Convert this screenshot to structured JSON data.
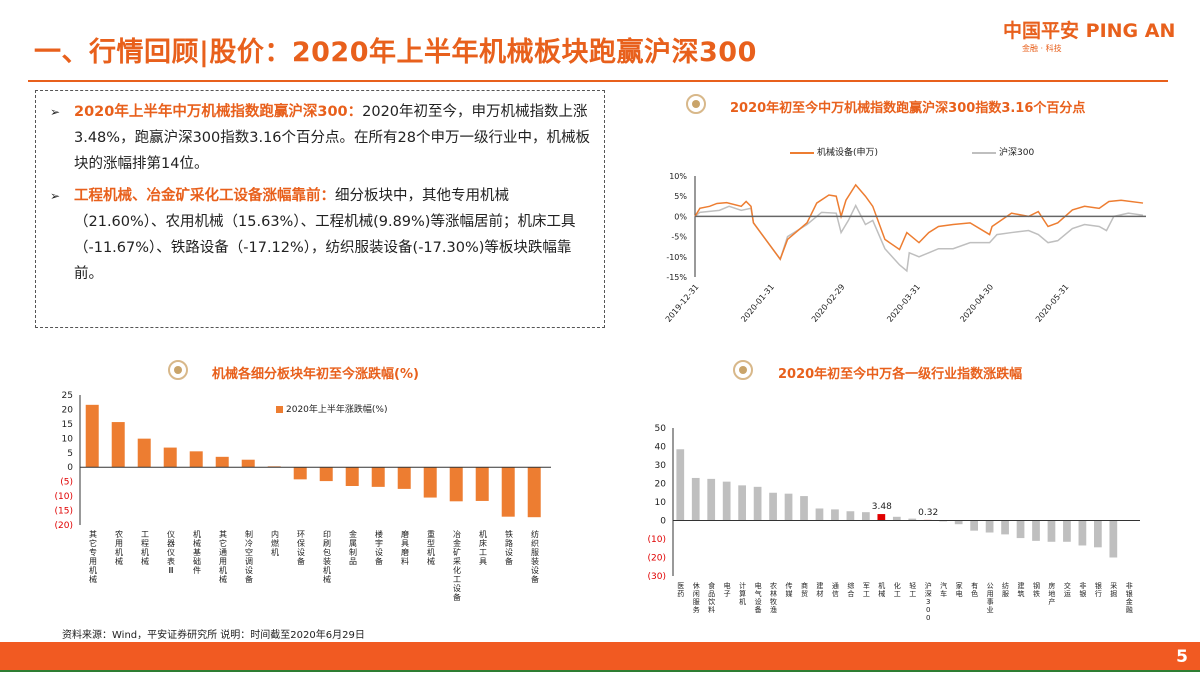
{
  "header": {
    "title": "一、行情回顾|股价：2020年上半年机械板块跑赢沪深300",
    "logo_cn": "中国平安",
    "logo_en": "PING AN",
    "logo_sub": "金融 · 科技"
  },
  "summary": [
    {
      "bullet": "➢",
      "highlight": "2020年上半年中万机械指数跑赢沪深300：",
      "text": "2020年初至今，申万机械指数上涨3.48%，跑赢沪深300指数3.16个百分点。在所有28个申万一级行业中，机械板块的涨幅排第14位。"
    },
    {
      "bullet": "➢",
      "highlight": "工程机械、冶金矿采化工设备涨幅靠前：",
      "text": "细分板块中，其他专用机械（21.60%）、农用机械（15.63%）、工程机械(9.89%)等涨幅居前；机床工具（-11.67%）、铁路设备（-17.12%），纺织服装设备(-17.30%)等板块跌幅靠前。"
    }
  ],
  "colors": {
    "accent": "#e8601c",
    "bar_orange": "#ed7d31",
    "gray": "#bfbfbf",
    "highlight_red": "#e00000",
    "negative_label": "#e00000"
  },
  "chart_data": [
    {
      "type": "line",
      "title": "2020年初至今中万机械指数跑赢沪深300指数3.16个百分点",
      "ylim": [
        -15,
        10
      ],
      "yticks": [
        "10%",
        "5%",
        "0%",
        "-5%",
        "-10%",
        "-15%"
      ],
      "ytick_values": [
        10,
        5,
        0,
        -5,
        -10,
        -15
      ],
      "xticks": [
        "2019-12-31",
        "2020-01-31",
        "2020-02-29",
        "2020-03-31",
        "2020-04-30",
        "2020-05-31"
      ],
      "xtick_days": [
        0,
        31,
        60,
        91,
        121,
        152
      ],
      "xlim_days": [
        0,
        184
      ],
      "legend_position": "top",
      "series": [
        {
          "name": "机械设备(申万)",
          "color": "#ed7d31",
          "points": [
            [
              0,
              0
            ],
            [
              2,
              2
            ],
            [
              6,
              2.5
            ],
            [
              9,
              3.2
            ],
            [
              13,
              3.4
            ],
            [
              19,
              2.5
            ],
            [
              21,
              3.7
            ],
            [
              23,
              2.5
            ],
            [
              24,
              -1.6
            ],
            [
              35,
              -10.6
            ],
            [
              38,
              -5.7
            ],
            [
              46,
              -1.6
            ],
            [
              50,
              3.3
            ],
            [
              55,
              5.3
            ],
            [
              58,
              5
            ],
            [
              60,
              0
            ],
            [
              62,
              4
            ],
            [
              66,
              7.8
            ],
            [
              70,
              5
            ],
            [
              73,
              2.5
            ],
            [
              78,
              -5.7
            ],
            [
              84,
              -8.2
            ],
            [
              87,
              -4
            ],
            [
              92,
              -6.5
            ],
            [
              96,
              -4
            ],
            [
              100,
              -2.5
            ],
            [
              106,
              -2
            ],
            [
              113,
              -1.6
            ],
            [
              121,
              -4.5
            ],
            [
              122,
              -2.5
            ],
            [
              130,
              0.8
            ],
            [
              137,
              0
            ],
            [
              141,
              1.2
            ],
            [
              145,
              -2.5
            ],
            [
              149,
              -1.6
            ],
            [
              155,
              1.6
            ],
            [
              160,
              2.5
            ],
            [
              166,
              2
            ],
            [
              170,
              3.7
            ],
            [
              175,
              4
            ],
            [
              184,
              3.3
            ]
          ]
        },
        {
          "name": "沪深300",
          "color": "#bfbfbf",
          "points": [
            [
              0,
              0
            ],
            [
              2,
              1
            ],
            [
              10,
              1.5
            ],
            [
              14,
              2.5
            ],
            [
              19,
              1.5
            ],
            [
              23,
              2
            ],
            [
              24,
              -1.6
            ],
            [
              35,
              -10.6
            ],
            [
              38,
              -5
            ],
            [
              46,
              -2
            ],
            [
              50,
              0
            ],
            [
              52,
              1
            ],
            [
              58,
              0.8
            ],
            [
              60,
              -4
            ],
            [
              63,
              -1
            ],
            [
              66,
              2.7
            ],
            [
              70,
              -2
            ],
            [
              73,
              -1
            ],
            [
              78,
              -8
            ],
            [
              84,
              -12
            ],
            [
              87,
              -13.5
            ],
            [
              88,
              -9
            ],
            [
              92,
              -10
            ],
            [
              96,
              -9
            ],
            [
              100,
              -8
            ],
            [
              106,
              -8
            ],
            [
              113,
              -6.5
            ],
            [
              121,
              -6.5
            ],
            [
              124,
              -4.5
            ],
            [
              130,
              -4
            ],
            [
              137,
              -3.5
            ],
            [
              141,
              -4.5
            ],
            [
              145,
              -6.5
            ],
            [
              149,
              -6
            ],
            [
              155,
              -3
            ],
            [
              160,
              -2
            ],
            [
              166,
              -2.5
            ],
            [
              169,
              -3.5
            ],
            [
              172,
              0
            ],
            [
              178,
              0.8
            ],
            [
              184,
              0.3
            ]
          ]
        }
      ]
    },
    {
      "type": "bar",
      "title": "机械各细分板块年初至今涨跌幅(%)",
      "legend": "2020年上半年涨跌幅(%)",
      "legend_position": "top-center",
      "ylim": [
        -20,
        25
      ],
      "yticks": [
        "25",
        "20",
        "15",
        "10",
        "5",
        "0",
        "(5)",
        "(10)",
        "(15)",
        "(20)"
      ],
      "ytick_values": [
        25,
        20,
        15,
        10,
        5,
        0,
        -5,
        -10,
        -15,
        -20
      ],
      "categories": [
        "其它专用机械",
        "农用机械",
        "工程机械",
        "仪器仪表Ⅲ",
        "机械基础件",
        "其它通用机械",
        "制冷空调设备",
        "内燃机",
        "环保设备",
        "印刷包装机械",
        "金属制品",
        "楼宇设备",
        "磨具磨料",
        "重型机械",
        "冶金矿采化工设备",
        "机床工具",
        "铁路设备",
        "纺织服装设备"
      ],
      "values": [
        21.6,
        15.63,
        9.89,
        6.8,
        5.5,
        3.6,
        2.6,
        0.3,
        -4.2,
        -4.8,
        -6.5,
        -6.8,
        -7.5,
        -10.5,
        -11.8,
        -11.67,
        -17.12,
        -17.3
      ]
    },
    {
      "type": "bar",
      "title": "2020年初至今中万各一级行业指数涨跌幅",
      "ylim": [
        -30,
        50
      ],
      "yticks": [
        "50",
        "40",
        "30",
        "20",
        "10",
        "0",
        "(10)",
        "(20)",
        "(30)"
      ],
      "ytick_values": [
        50,
        40,
        30,
        20,
        10,
        0,
        -10,
        -20,
        -30
      ],
      "categories": [
        "医药",
        "休闲服务",
        "食品饮料",
        "电子",
        "计算机",
        "电气设备",
        "农林牧渔",
        "传媒",
        "商贸",
        "建材",
        "通信",
        "综合",
        "军工",
        "机械",
        "化工",
        "轻工",
        "沪深300",
        "汽车",
        "家电",
        "有色",
        "公用事业",
        "纺服",
        "建筑",
        "钢铁",
        "房地产",
        "交运",
        "非银",
        "银行",
        "采掘",
        "非银金融"
      ],
      "values": [
        38.5,
        23,
        22.5,
        21,
        19,
        18.2,
        15,
        14.5,
        13.2,
        6.5,
        6,
        5,
        4.5,
        3.48,
        2,
        1,
        0.32,
        -0.5,
        -2,
        -5.5,
        -6.5,
        -7.5,
        -9.5,
        -11,
        -11.5,
        -11.5,
        -13.5,
        -14.5,
        -20,
        0
      ],
      "highlight": [
        "机械",
        "沪深300"
      ],
      "data_labels": {
        "机械": "3.48",
        "沪深300": "0.32"
      }
    }
  ],
  "footer": {
    "source": "资料来源：Wind，平安证券研究所 说明：时间截至2020年6月29日",
    "page": "5"
  }
}
